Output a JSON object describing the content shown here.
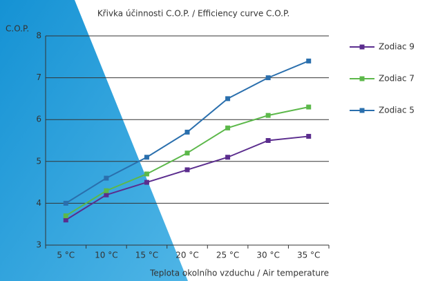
{
  "chart_data": {
    "type": "line",
    "title": "Křivka účinnosti C.O.P. / Efficiency curve C.O.P.",
    "y_label": "C.O.P.",
    "x_label": "Teplota okolního vzduchu / Air temperature",
    "categories": [
      "5 °C",
      "10 °C",
      "15 °C",
      "20 °C",
      "25 °C",
      "30 °C",
      "35 °C"
    ],
    "series": [
      {
        "name": "Zodiac 9",
        "color": "#5b2d8e",
        "values": [
          3.6,
          4.2,
          4.5,
          4.8,
          5.1,
          5.5,
          5.6
        ]
      },
      {
        "name": "Zodiac 7",
        "color": "#5cb84a",
        "values": [
          3.7,
          4.3,
          4.7,
          5.2,
          5.8,
          6.1,
          6.3
        ]
      },
      {
        "name": "Zodiac 5",
        "color": "#2a6fad",
        "values": [
          4.0,
          4.6,
          5.1,
          5.7,
          6.5,
          7.0,
          7.4
        ]
      }
    ],
    "ylim": [
      3,
      8
    ],
    "yticks": [
      3,
      4,
      5,
      6,
      7,
      8
    ],
    "grid": true,
    "legend": "right"
  }
}
